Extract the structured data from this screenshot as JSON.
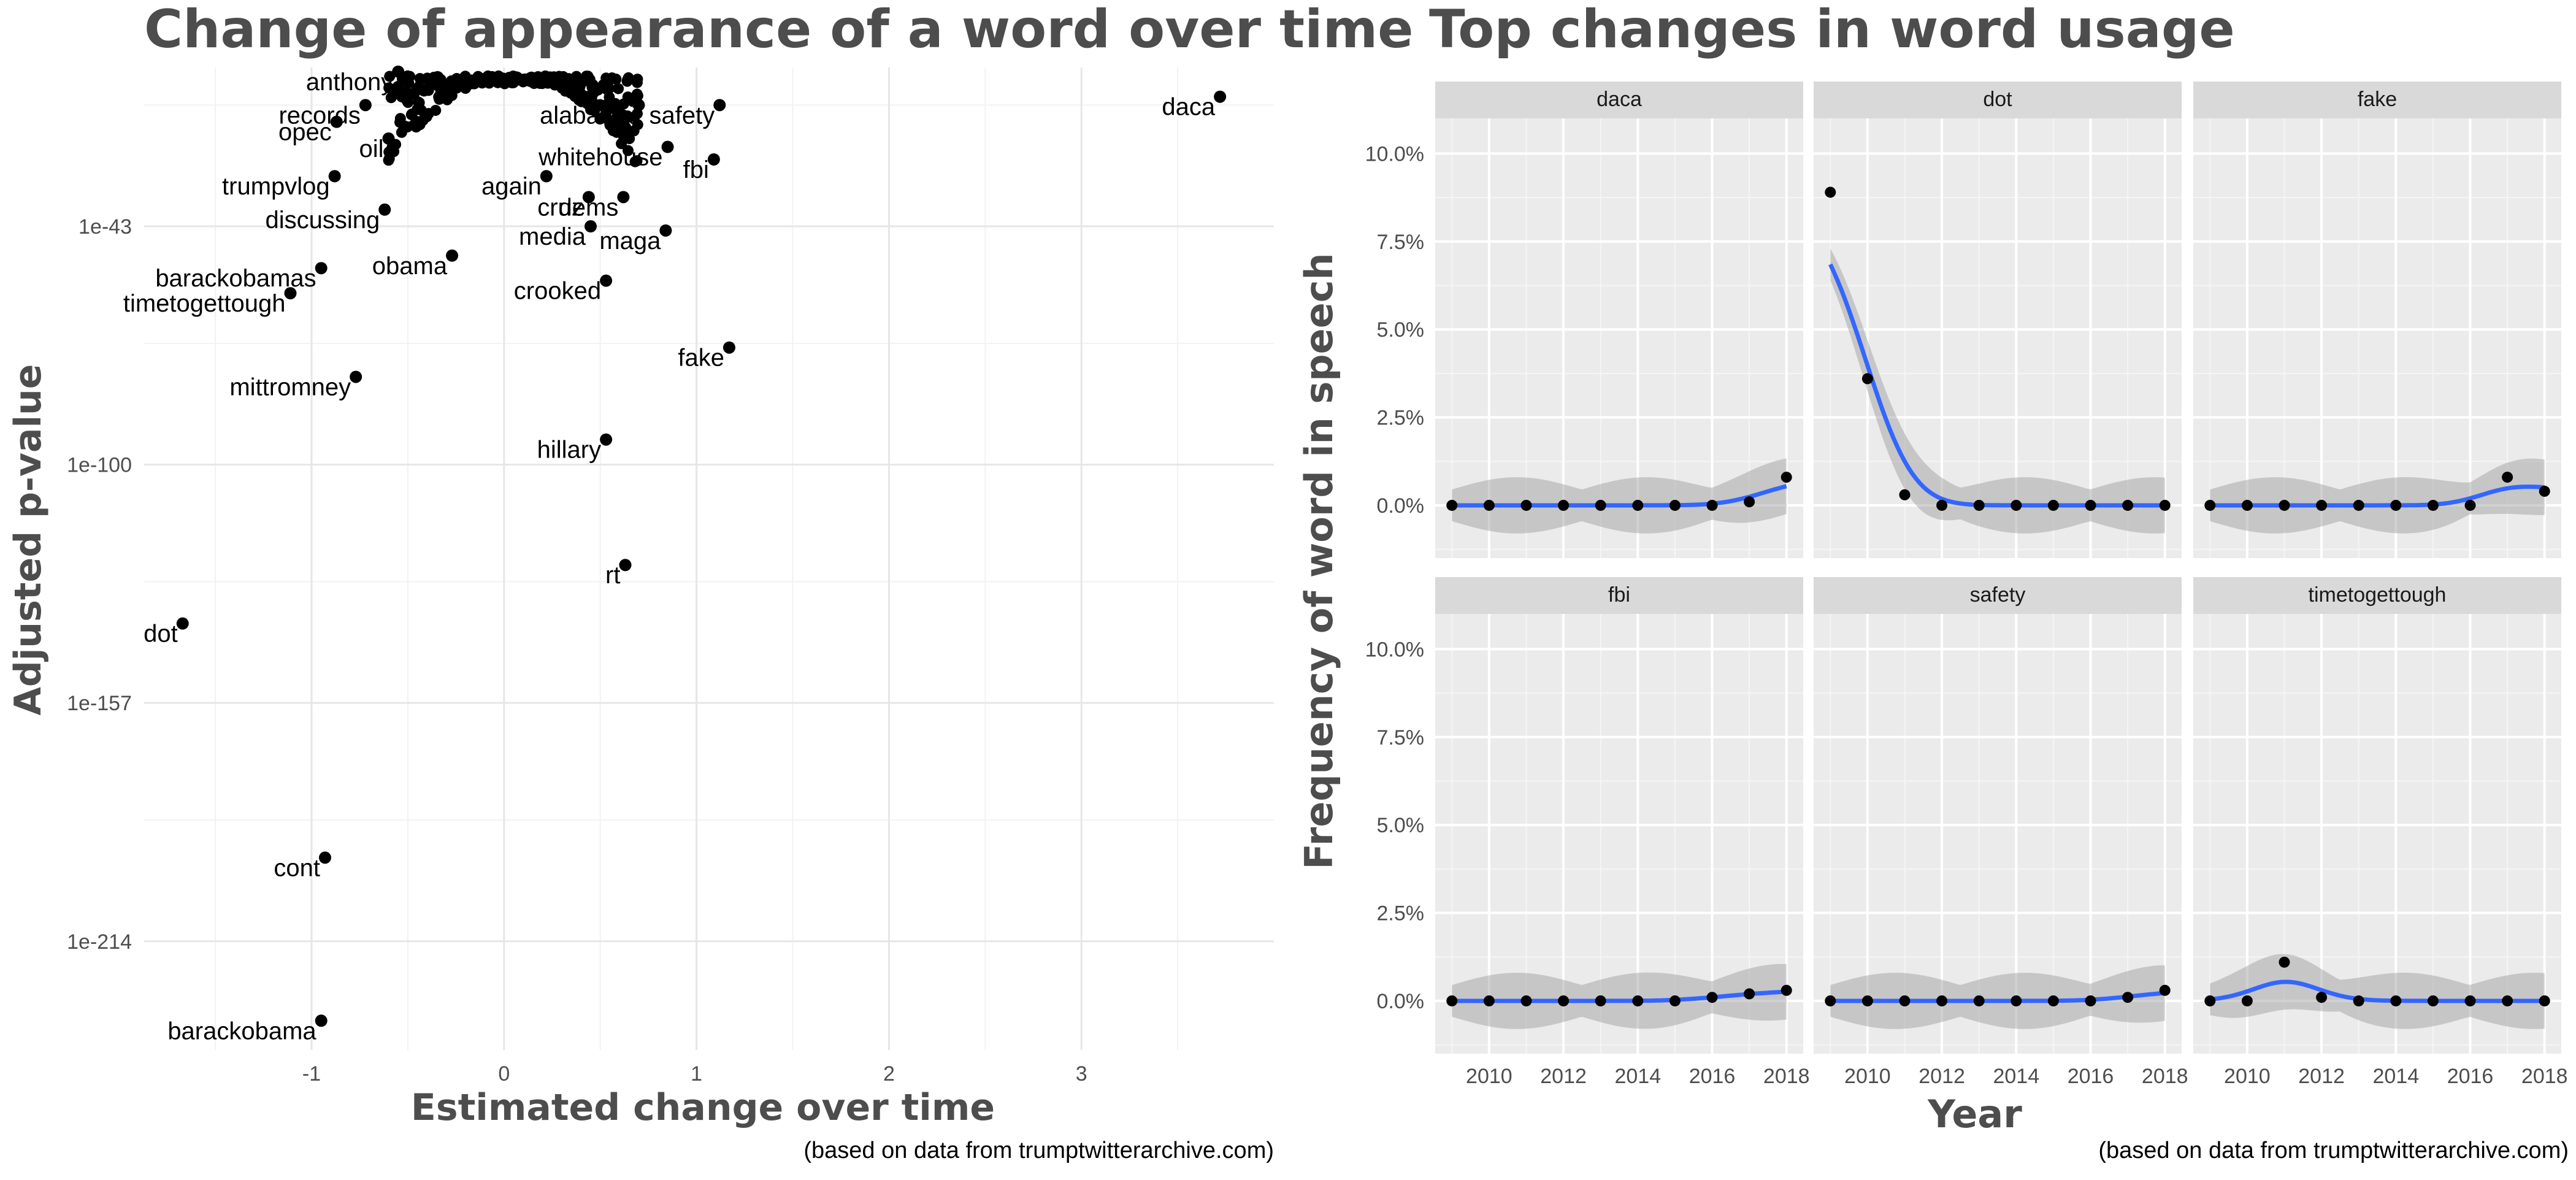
{
  "chart_data": [
    {
      "type": "scatter",
      "title": "Change of appearance of a word over time",
      "xlabel": "Estimated change over time",
      "ylabel": "Adjusted p-value",
      "caption": "(based on data from trumptwitterarchive.com)",
      "y_scale": "log10",
      "xlim": [
        -1.87,
        4.0
      ],
      "ylim": [
        1e-240,
        1e-05
      ],
      "x_ticks": [
        -1,
        0,
        1,
        2,
        3
      ],
      "x_tick_labels": [
        "-1",
        "0",
        "1",
        "2",
        "3"
      ],
      "y_ticks": [
        1e-43,
        1e-100,
        1e-157,
        1e-214
      ],
      "y_tick_labels": [
        "1e-43",
        "1e-100",
        "1e-157",
        "1e-214"
      ],
      "grid": true,
      "labeled_points": [
        {
          "word": "daca",
          "x": 3.72,
          "y": 1e-12
        },
        {
          "word": "anthony",
          "x": -0.55,
          "y": 1e-06
        },
        {
          "word": "records",
          "x": -0.72,
          "y": 1e-14
        },
        {
          "word": "opec",
          "x": -0.87,
          "y": 1e-18
        },
        {
          "word": "oil",
          "x": -0.6,
          "y": 1e-22
        },
        {
          "word": "trumpvlog",
          "x": -0.88,
          "y": 1e-31
        },
        {
          "word": "discussing",
          "x": -0.62,
          "y": 1e-39
        },
        {
          "word": "obama",
          "x": -0.27,
          "y": 1e-50
        },
        {
          "word": "barackobamas",
          "x": -0.95,
          "y": 1e-53
        },
        {
          "word": "timetogettough",
          "x": -1.11,
          "y": 1e-59
        },
        {
          "word": "mittromney",
          "x": -0.77,
          "y": 1e-79
        },
        {
          "word": "again",
          "x": 0.22,
          "y": 1e-31
        },
        {
          "word": "cruz",
          "x": 0.44,
          "y": 1e-36
        },
        {
          "word": "dems",
          "x": 0.62,
          "y": 1e-36
        },
        {
          "word": "media",
          "x": 0.45,
          "y": 1e-43
        },
        {
          "word": "maga",
          "x": 0.84,
          "y": 1e-44
        },
        {
          "word": "crooked",
          "x": 0.53,
          "y": 1e-56
        },
        {
          "word": "whitehouse",
          "x": 0.85,
          "y": 1e-24
        },
        {
          "word": "safety",
          "x": 1.12,
          "y": 1e-14
        },
        {
          "word": "fbi",
          "x": 1.09,
          "y": 1e-27
        },
        {
          "word": "alabama",
          "x": 0.7,
          "y": 1e-14
        },
        {
          "word": "fake",
          "x": 1.17,
          "y": 1e-72
        },
        {
          "word": "hillary",
          "x": 0.53,
          "y": 1e-94
        },
        {
          "word": "rt",
          "x": 0.63,
          "y": 1e-124
        },
        {
          "word": "dot",
          "x": -1.67,
          "y": 1e-138
        },
        {
          "word": "cont",
          "x": -0.93,
          "y": 1e-194
        },
        {
          "word": "barackobama",
          "x": -0.95,
          "y": 1e-233
        }
      ]
    },
    {
      "type": "line",
      "title": "Top changes in word usage",
      "xlabel": "Year",
      "ylabel": "Frequency of word in speech",
      "caption": "(based on data from trumptwitterarchive.com)",
      "x": [
        2009,
        2010,
        2011,
        2012,
        2013,
        2014,
        2015,
        2016,
        2017,
        2018
      ],
      "x_ticks": [
        2010,
        2012,
        2014,
        2016,
        2018
      ],
      "x_tick_labels": [
        "2010",
        "2012",
        "2014",
        "2016",
        "2018"
      ],
      "y_ticks": [
        0,
        2.5,
        5,
        7.5,
        10
      ],
      "y_tick_labels": [
        "0.0%",
        "2.5%",
        "5.0%",
        "7.5%",
        "10.0%"
      ],
      "ylim_percent": [
        -1.5,
        11
      ],
      "grid": true,
      "series": [
        {
          "name": "daca",
          "values": [
            0,
            0,
            0,
            0,
            0,
            0,
            0,
            0,
            0.1,
            0.8
          ]
        },
        {
          "name": "dot",
          "values": [
            8.9,
            3.6,
            0.3,
            0,
            0,
            0,
            0,
            0,
            0,
            0
          ]
        },
        {
          "name": "fake",
          "values": [
            0,
            0,
            0,
            0,
            0,
            0,
            0,
            0,
            0.8,
            0.4
          ]
        },
        {
          "name": "fbi",
          "values": [
            0,
            0,
            0,
            0,
            0,
            0,
            0,
            0.1,
            0.2,
            0.3
          ]
        },
        {
          "name": "safety",
          "values": [
            0,
            0,
            0,
            0,
            0,
            0,
            0,
            0,
            0.1,
            0.3
          ]
        },
        {
          "name": "timetogettough",
          "values": [
            0,
            0,
            1.1,
            0.1,
            0,
            0,
            0,
            0,
            0,
            0
          ]
        }
      ],
      "smooth_color": "#3366ff",
      "ribbon_color": "#999999",
      "panel_color": "#ebebeb",
      "strip_color": "#d9d9d9"
    }
  ]
}
